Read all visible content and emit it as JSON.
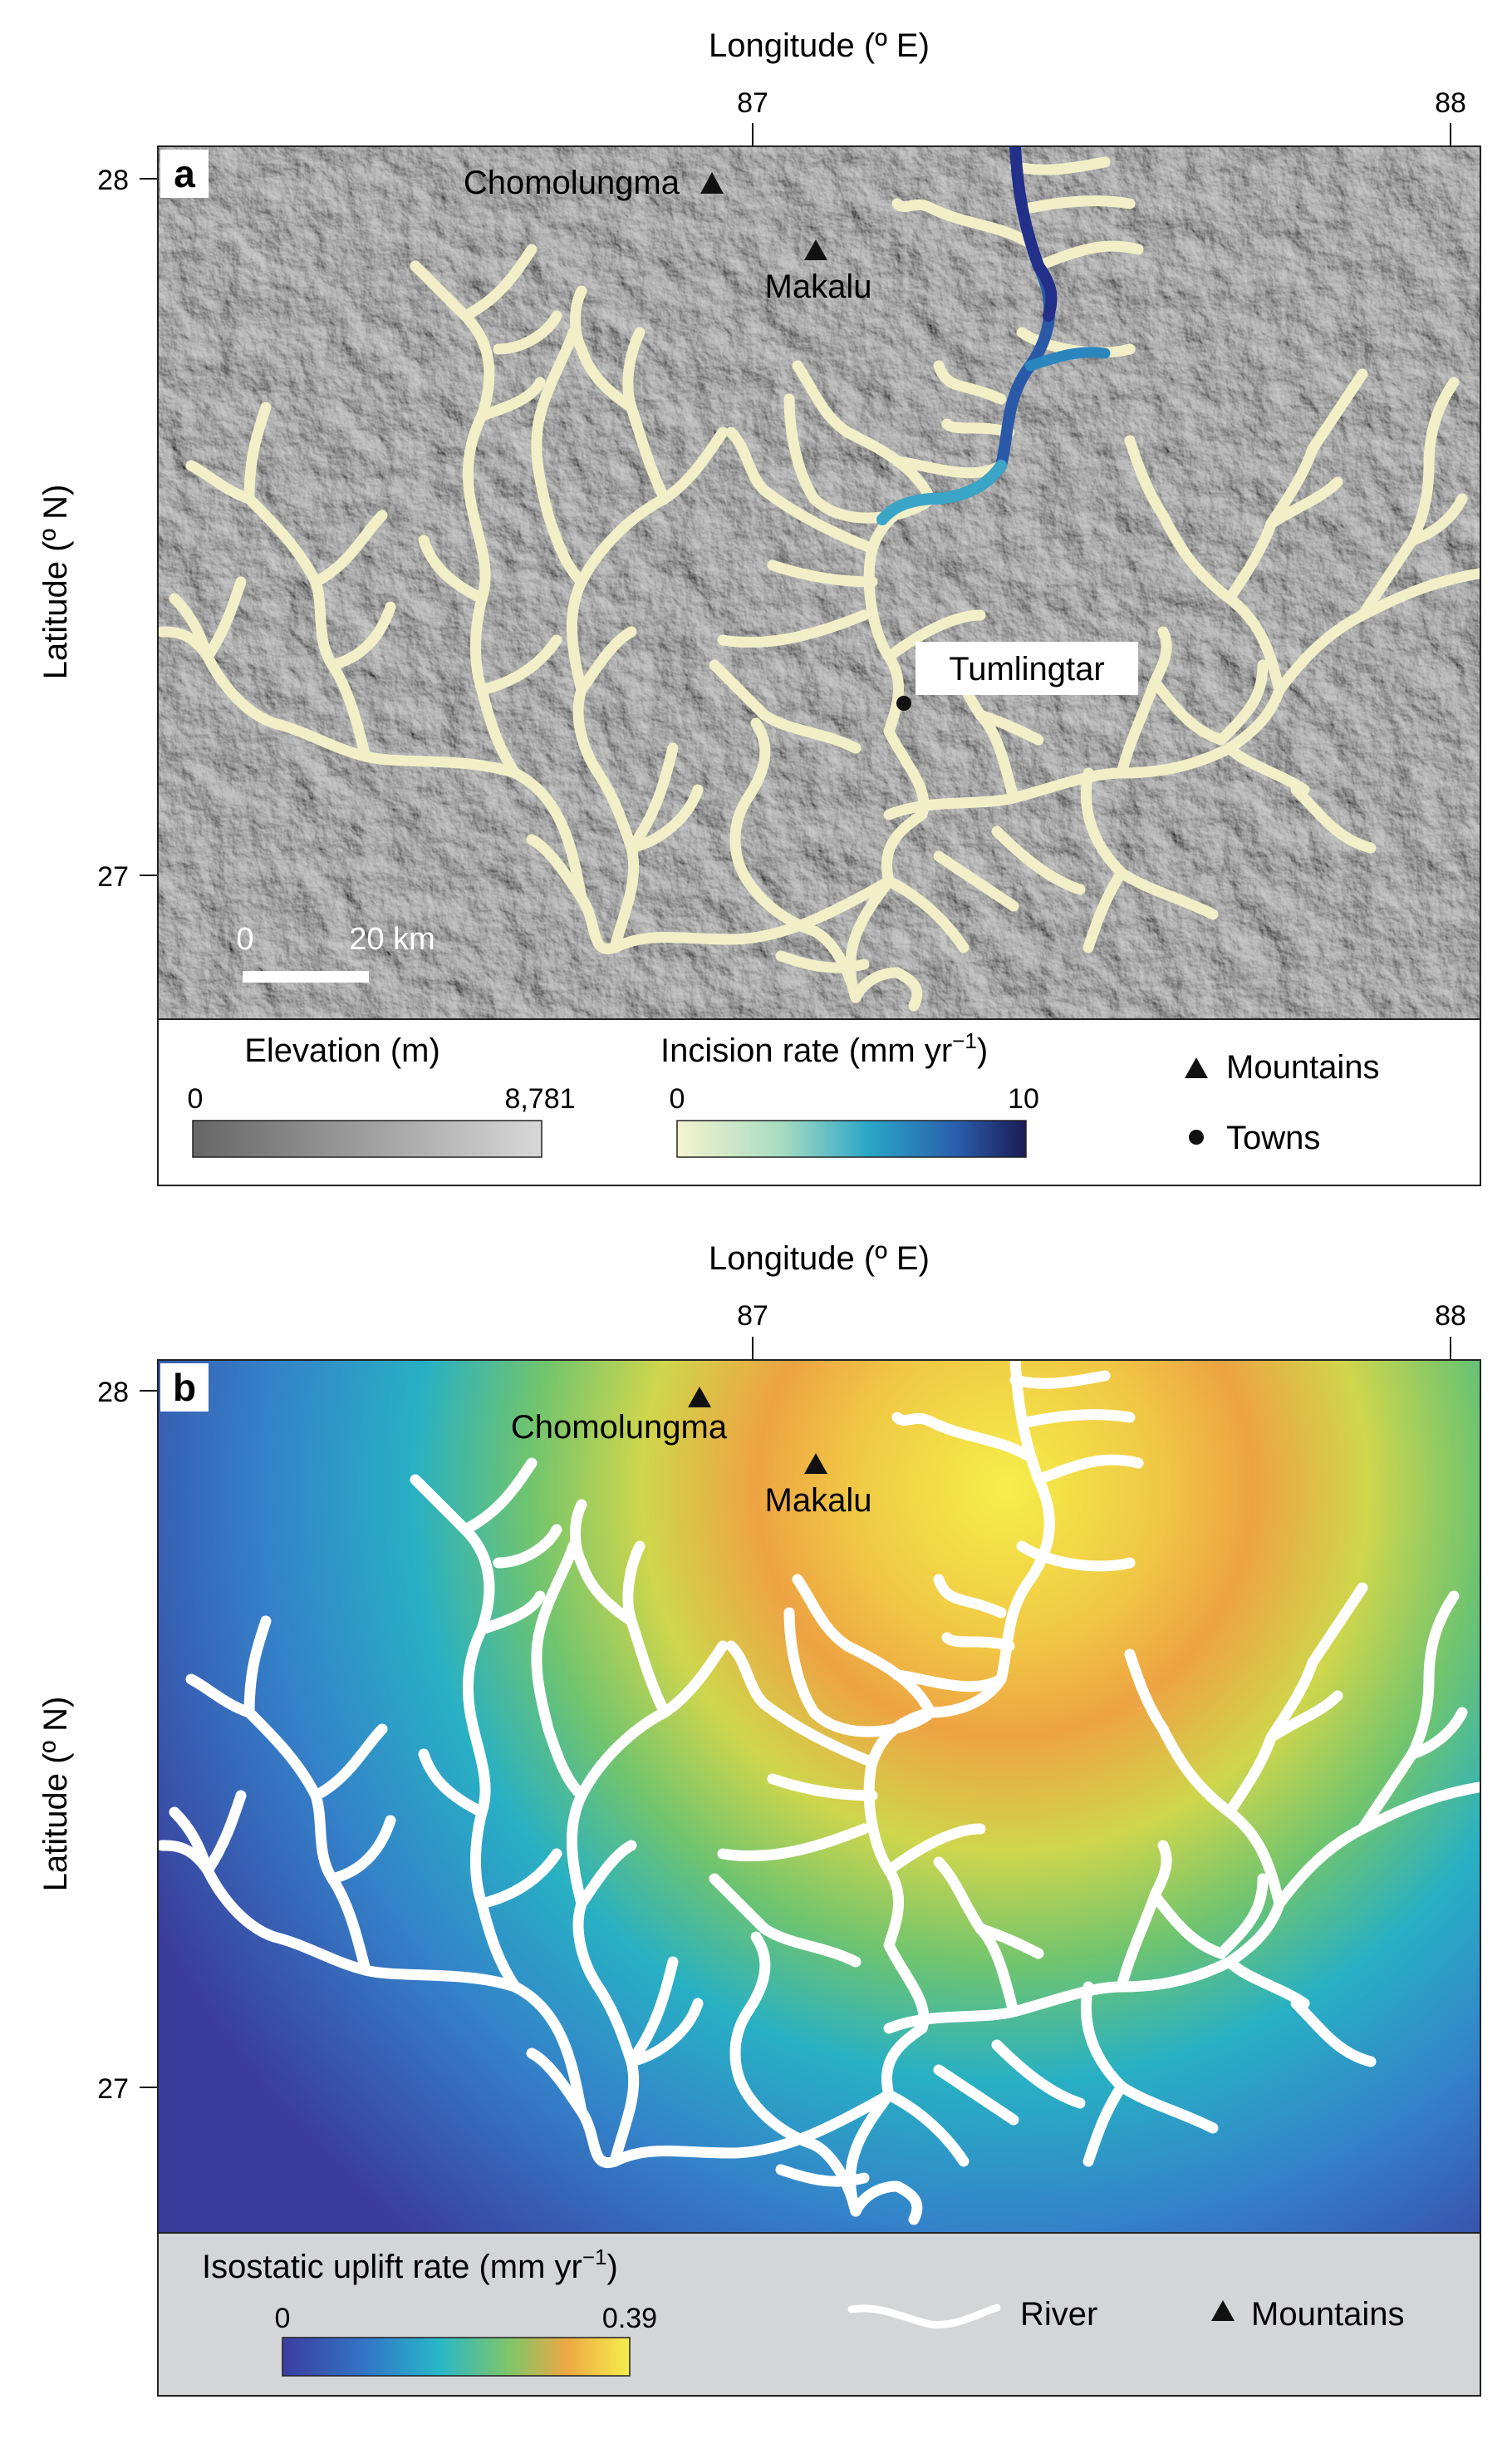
{
  "panel_a": {
    "label": "a",
    "x_axis_title": "Longitude (º E)",
    "x_ticks": [
      "87",
      "88"
    ],
    "y_axis_title": "Latitude (º N)",
    "y_ticks": [
      "28",
      "27"
    ],
    "mountains": [
      "Chomolungma",
      "Makalu"
    ],
    "town": "Tumlingtar",
    "scale_bar": {
      "start": "0",
      "end": "20 km"
    },
    "legend": {
      "elevation_title": "Elevation (m)",
      "elevation_min": "0",
      "elevation_max": "8,781",
      "incision_title": "Incision rate (mm yr",
      "incision_unit_sup": "−1",
      "incision_title_close": ")",
      "incision_min": "0",
      "incision_max": "10",
      "mountains_label": "Mountains",
      "towns_label": "Towns"
    }
  },
  "panel_b": {
    "label": "b",
    "x_axis_title": "Longitude (º E)",
    "x_ticks": [
      "87",
      "88"
    ],
    "y_axis_title": "Latitude (º N)",
    "y_ticks": [
      "28",
      "27"
    ],
    "mountains": [
      "Chomolungma",
      "Makalu"
    ],
    "legend": {
      "uplift_title": "Isostatic uplift rate (mm yr",
      "uplift_unit_sup": "−1",
      "uplift_title_close": ")",
      "uplift_min": "0",
      "uplift_max": "0.39",
      "river_label": "River",
      "mountains_label": "Mountains"
    }
  },
  "colors": {
    "river_a": "#f2efc8",
    "river_b": "#ffffff",
    "incision_scale": [
      "#f5f3cf",
      "#9fd5c0",
      "#2ba3c6",
      "#2a62b1",
      "#1c1d59"
    ],
    "uplift_scale": [
      "#3b3da0",
      "#3278c8",
      "#28b6c9",
      "#7cc56a",
      "#e1d845",
      "#f2a83f",
      "#f5ee4b"
    ],
    "elevation_scale": [
      "#6a6a6a",
      "#d6d6d6"
    ],
    "legend_bg_b": "#d4d5d7"
  }
}
